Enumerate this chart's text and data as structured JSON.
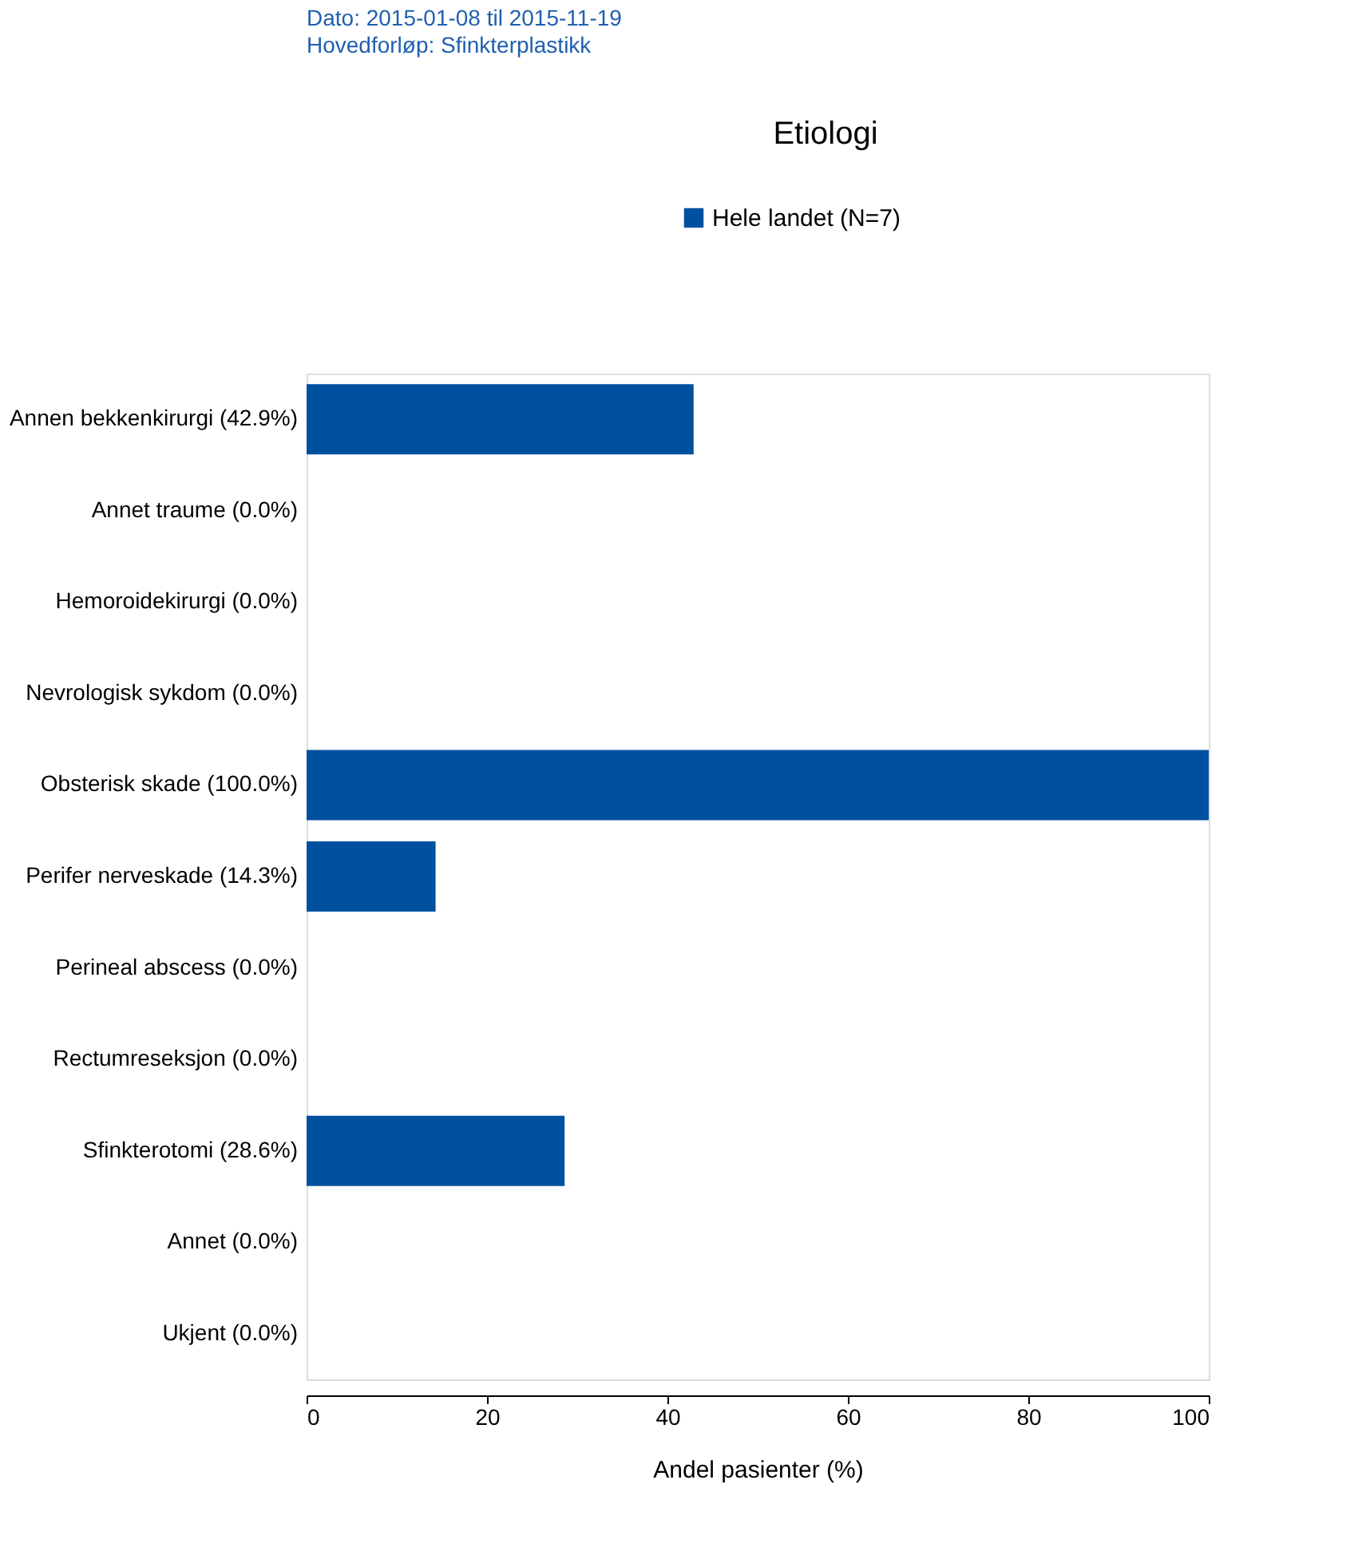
{
  "chart_data": {
    "type": "bar",
    "orientation": "horizontal",
    "title": "Etiologi",
    "annotations": [
      "Dato: 2015-01-08 til 2015-11-19",
      "Hovedforløp: Sfinkterplastikk"
    ],
    "categories": [
      "Annen bekkenkirurgi (42.9%)",
      "Annet traume (0.0%)",
      "Hemoroidekirurgi (0.0%)",
      "Nevrologisk sykdom (0.0%)",
      "Obsterisk skade (100.0%)",
      "Perifer nerveskade (14.3%)",
      "Perineal abscess (0.0%)",
      "Rectumreseksjon (0.0%)",
      "Sfinkterotomi (28.6%)",
      "Annet (0.0%)",
      "Ukjent (0.0%)"
    ],
    "series": [
      {
        "name": "Hele landet (N=7)",
        "color": "#0050a0",
        "values": [
          42.9,
          0,
          0,
          0,
          100,
          14.3,
          0,
          0,
          28.6,
          0,
          0
        ]
      }
    ],
    "xlabel": "Andel pasienter (%)",
    "xlim": [
      0,
      100
    ],
    "xticks": [
      0,
      20,
      40,
      60,
      80,
      100
    ],
    "grid": false,
    "legend": "top right"
  }
}
